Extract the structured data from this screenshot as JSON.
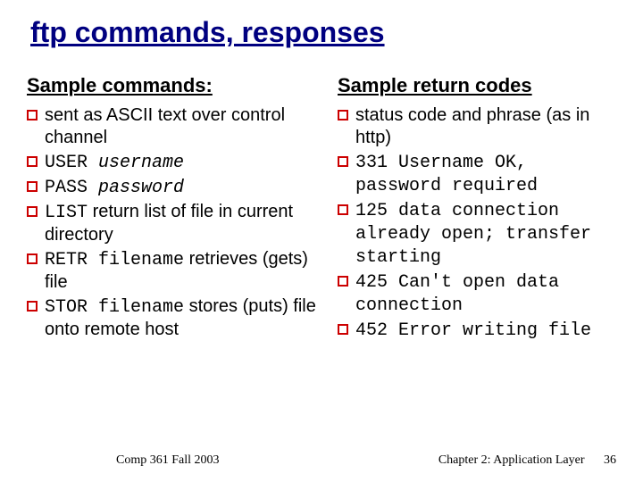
{
  "title": "ftp commands, responses",
  "left": {
    "heading": "Sample commands:",
    "items": [
      {
        "segments": [
          {
            "t": "sent as ASCII text over control channel",
            "cls": ""
          }
        ]
      },
      {
        "segments": [
          {
            "t": "USER ",
            "cls": "mono"
          },
          {
            "t": "username",
            "cls": "italic-mono"
          }
        ]
      },
      {
        "segments": [
          {
            "t": "PASS ",
            "cls": "mono"
          },
          {
            "t": "password",
            "cls": "italic-mono"
          }
        ]
      },
      {
        "segments": [
          {
            "t": "LIST",
            "cls": "mono"
          },
          {
            "t": " return list of file in current directory",
            "cls": ""
          }
        ]
      },
      {
        "segments": [
          {
            "t": "RETR filename",
            "cls": "mono"
          },
          {
            "t": " retrieves (gets) file",
            "cls": ""
          }
        ]
      },
      {
        "segments": [
          {
            "t": "STOR filename",
            "cls": "mono"
          },
          {
            "t": " stores (puts) file onto remote host",
            "cls": ""
          }
        ]
      }
    ]
  },
  "right": {
    "heading": "Sample return codes",
    "items": [
      {
        "segments": [
          {
            "t": "status code and phrase (as in http)",
            "cls": ""
          }
        ]
      },
      {
        "segments": [
          {
            "t": "331 Username OK, password required",
            "cls": "mono"
          }
        ]
      },
      {
        "segments": [
          {
            "t": "125 data connection already open; transfer starting",
            "cls": "mono"
          }
        ]
      },
      {
        "segments": [
          {
            "t": "425 Can't open data connection",
            "cls": "mono"
          }
        ]
      },
      {
        "segments": [
          {
            "t": "452 Error writing file",
            "cls": "mono"
          }
        ]
      }
    ]
  },
  "footer": {
    "left": "Comp 361   Fall 2003",
    "right": "Chapter 2: Application Layer",
    "page": "36"
  },
  "colors": {
    "title": "#000080",
    "bullet_border": "#cc0000",
    "text": "#000000",
    "background": "#ffffff"
  }
}
